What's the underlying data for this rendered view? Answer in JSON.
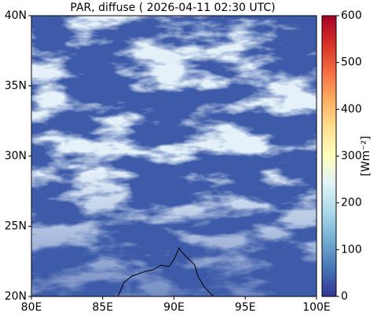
{
  "chart_data": {
    "type": "map",
    "title": "PAR, diffuse ( 2026-04-11 02:30 UTC)",
    "xlim": [
      80,
      100
    ],
    "xticks": [
      {
        "value": 80,
        "label": "80E"
      },
      {
        "value": 85,
        "label": "85E"
      },
      {
        "value": 90,
        "label": "90E"
      },
      {
        "value": 95,
        "label": "95E"
      },
      {
        "value": 100,
        "label": "100E"
      }
    ],
    "ylim": [
      20,
      40
    ],
    "yticks": [
      {
        "value": 20,
        "label": "20N"
      },
      {
        "value": 25,
        "label": "25N"
      },
      {
        "value": 30,
        "label": "30N"
      },
      {
        "value": 35,
        "label": "35N"
      },
      {
        "value": 40,
        "label": "40N"
      }
    ],
    "colorbar": {
      "label": "[Wm⁻²]",
      "lim": [
        0,
        600
      ],
      "ticks": [
        0,
        100,
        200,
        300,
        400,
        500,
        600
      ]
    }
  }
}
